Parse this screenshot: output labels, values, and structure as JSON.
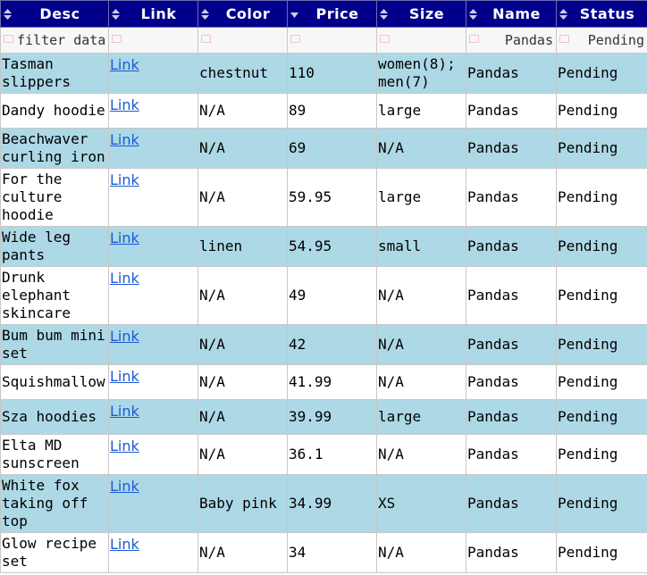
{
  "columns": [
    "Desc",
    "Link",
    "Color",
    "Price",
    "Size",
    "Name",
    "Status"
  ],
  "active_sort_column": "Price",
  "filter": {
    "desc_placeholder": "filter data",
    "name_value": "Pandas",
    "status_value": "Pending"
  },
  "link_text": "Link",
  "colors": {
    "header_bg": "#00008b",
    "row_alt_bg": "#add8e6",
    "link": "#1a5ad8"
  },
  "rows": [
    {
      "desc": "Tasman slippers",
      "link": "Link",
      "color": "chestnut",
      "price": "110",
      "size": "women(8); men(7)",
      "name": "Pandas",
      "status": "Pending"
    },
    {
      "desc": "Dandy hoodie",
      "link": "Link",
      "color": "N/A",
      "price": "89",
      "size": "large",
      "name": "Pandas",
      "status": "Pending"
    },
    {
      "desc": "Beachwaver curling iron",
      "link": "Link",
      "color": "N/A",
      "price": "69",
      "size": "N/A",
      "name": "Pandas",
      "status": "Pending"
    },
    {
      "desc": "For the culture hoodie",
      "link": "Link",
      "color": "N/A",
      "price": "59.95",
      "size": "large",
      "name": "Pandas",
      "status": "Pending"
    },
    {
      "desc": "Wide leg pants",
      "link": "Link",
      "color": "linen",
      "price": "54.95",
      "size": "small",
      "name": "Pandas",
      "status": "Pending"
    },
    {
      "desc": "Drunk elephant skincare",
      "link": "Link",
      "color": "N/A",
      "price": "49",
      "size": "N/A",
      "name": "Pandas",
      "status": "Pending"
    },
    {
      "desc": "Bum bum mini set",
      "link": "Link",
      "color": "N/A",
      "price": "42",
      "size": "N/A",
      "name": "Pandas",
      "status": "Pending"
    },
    {
      "desc": "Squishmallow",
      "link": "Link",
      "color": "N/A",
      "price": "41.99",
      "size": "N/A",
      "name": "Pandas",
      "status": "Pending"
    },
    {
      "desc": "Sza hoodies",
      "link": "Link",
      "color": "N/A",
      "price": "39.99",
      "size": "large",
      "name": "Pandas",
      "status": "Pending"
    },
    {
      "desc": "Elta MD sunscreen",
      "link": "Link",
      "color": "N/A",
      "price": "36.1",
      "size": "N/A",
      "name": "Pandas",
      "status": "Pending"
    },
    {
      "desc": "White fox taking off top",
      "link": "Link",
      "color": "Baby pink",
      "price": "34.99",
      "size": "XS",
      "name": "Pandas",
      "status": "Pending"
    },
    {
      "desc": "Glow recipe set",
      "link": "Link",
      "color": "N/A",
      "price": "34",
      "size": "N/A",
      "name": "Pandas",
      "status": "Pending"
    }
  ]
}
